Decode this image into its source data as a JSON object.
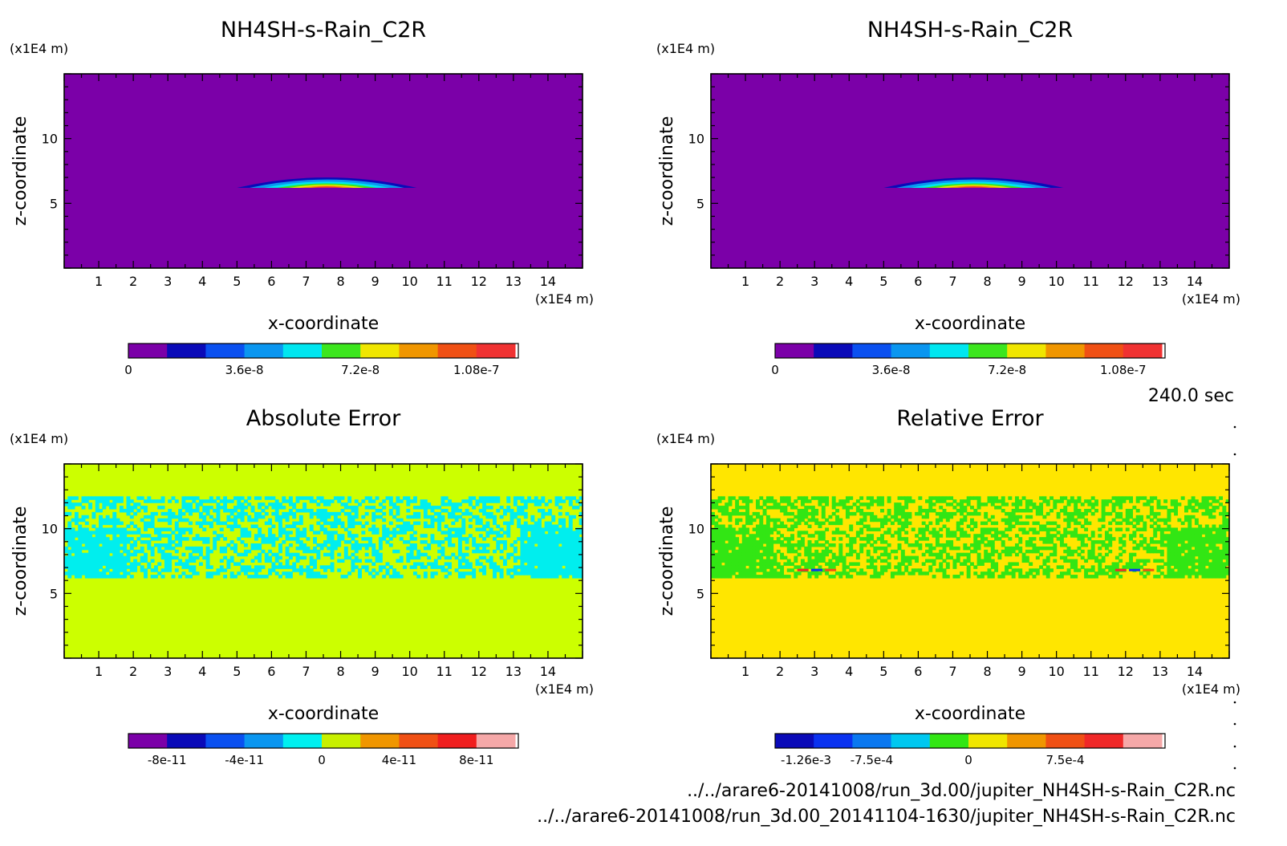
{
  "time_label": "240.0 sec",
  "files": [
    "../../arare6-20141008/run_3d.00/jupiter_NH4SH-s-Rain_C2R.nc",
    "../../arare6-20141008/run_3d.00_20141104-1630/jupiter_NH4SH-s-Rain_C2R.nc"
  ],
  "chart_data": [
    {
      "type": "heatmap",
      "title": "NH4SH-s-Rain_C2R",
      "xlabel": "x-coordinate",
      "ylabel": "z-coordinate",
      "x_unit": "(x1E4 m)",
      "y_unit": "(x1E4 m)",
      "xlim": [
        0,
        15
      ],
      "ylim": [
        0,
        15
      ],
      "x_ticks": [
        "1",
        "2",
        "3",
        "4",
        "5",
        "6",
        "7",
        "8",
        "9",
        "10",
        "11",
        "12",
        "13",
        "14"
      ],
      "y_ticks": [
        "5",
        "10"
      ],
      "background_color": "#7b00a8",
      "colorbar": {
        "colors": [
          "#7b00a8",
          "#0a0ab8",
          "#0a50f0",
          "#0a96f0",
          "#00e6f0",
          "#3ce61e",
          "#f0e600",
          "#f09600",
          "#f05014",
          "#f03232"
        ],
        "tick_labels": [
          "0",
          "3.6e-8",
          "7.2e-8",
          "1.08e-7"
        ],
        "tick_values": [
          0,
          3.6e-08,
          7.2e-08,
          1.08e-07
        ],
        "range": [
          0,
          1.2e-07
        ]
      },
      "feature": {
        "description_value": "thin lens of rain near z = 6.4",
        "x_range": [
          5,
          10.2
        ],
        "z_range": [
          6.2,
          7.0
        ],
        "peak": 1.2e-07
      }
    },
    {
      "type": "heatmap",
      "title": "NH4SH-s-Rain_C2R",
      "xlabel": "x-coordinate",
      "ylabel": "z-coordinate",
      "x_unit": "(x1E4 m)",
      "y_unit": "(x1E4 m)",
      "xlim": [
        0,
        15
      ],
      "ylim": [
        0,
        15
      ],
      "x_ticks": [
        "1",
        "2",
        "3",
        "4",
        "5",
        "6",
        "7",
        "8",
        "9",
        "10",
        "11",
        "12",
        "13",
        "14"
      ],
      "y_ticks": [
        "5",
        "10"
      ],
      "background_color": "#7b00a8",
      "colorbar": {
        "colors": [
          "#7b00a8",
          "#0a0ab8",
          "#0a50f0",
          "#0a96f0",
          "#00e6f0",
          "#3ce61e",
          "#f0e600",
          "#f09600",
          "#f05014",
          "#f03232"
        ],
        "tick_labels": [
          "0",
          "3.6e-8",
          "7.2e-8",
          "1.08e-7"
        ],
        "tick_values": [
          0,
          3.6e-08,
          7.2e-08,
          1.08e-07
        ],
        "range": [
          0,
          1.2e-07
        ]
      },
      "feature": {
        "description_value": "thin lens of rain near z = 6.4",
        "x_range": [
          5,
          10.2
        ],
        "z_range": [
          6.2,
          7.0
        ],
        "peak": 1.2e-07
      }
    },
    {
      "type": "heatmap",
      "title": "Absolute Error",
      "xlabel": "x-coordinate",
      "ylabel": "z-coordinate",
      "x_unit": "(x1E4 m)",
      "y_unit": "(x1E4 m)",
      "xlim": [
        0,
        15
      ],
      "ylim": [
        0,
        15
      ],
      "x_ticks": [
        "1",
        "2",
        "3",
        "4",
        "5",
        "6",
        "7",
        "8",
        "9",
        "10",
        "11",
        "12",
        "13",
        "14"
      ],
      "y_ticks": [
        "5",
        "10"
      ],
      "background_color": "#ccff00",
      "noise_color": "#00eeee",
      "noise_band_z": [
        6.2,
        12.5
      ],
      "colorbar": {
        "colors": [
          "#7b00a8",
          "#0a0ab8",
          "#0a50f0",
          "#0a96f0",
          "#00f0f0",
          "#c8f000",
          "#f09600",
          "#f05014",
          "#f01e1e",
          "#f5a8a8"
        ],
        "tick_labels": [
          "-8e-11",
          "-4e-11",
          "0",
          "4e-11",
          "8e-11"
        ],
        "tick_values": [
          -8e-11,
          -4e-11,
          0,
          4e-11,
          8e-11
        ],
        "range": [
          -1e-10,
          1e-10
        ]
      }
    },
    {
      "type": "heatmap",
      "title": "Relative Error",
      "xlabel": "x-coordinate",
      "ylabel": "z-coordinate",
      "x_unit": "(x1E4 m)",
      "y_unit": "(x1E4 m)",
      "xlim": [
        0,
        15
      ],
      "ylim": [
        0,
        15
      ],
      "x_ticks": [
        "1",
        "2",
        "3",
        "4",
        "5",
        "6",
        "7",
        "8",
        "9",
        "10",
        "11",
        "12",
        "13",
        "14"
      ],
      "y_ticks": [
        "5",
        "10"
      ],
      "background_color": "#ffe600",
      "noise_color": "#32e614",
      "noise_band_z": [
        6.2,
        12.5
      ],
      "colorbar": {
        "colors": [
          "#0a0ab8",
          "#0a32f0",
          "#0a78f0",
          "#00c8f0",
          "#32e614",
          "#f0e600",
          "#f09600",
          "#f05014",
          "#f02828",
          "#f5a8a8"
        ],
        "tick_labels": [
          "-1.26e-3",
          "-7.5e-4",
          "0",
          "7.5e-4"
        ],
        "tick_values": [
          -0.00126,
          -0.00075,
          0,
          0.00075
        ],
        "range": [
          -0.0015,
          0.0015
        ]
      }
    }
  ]
}
